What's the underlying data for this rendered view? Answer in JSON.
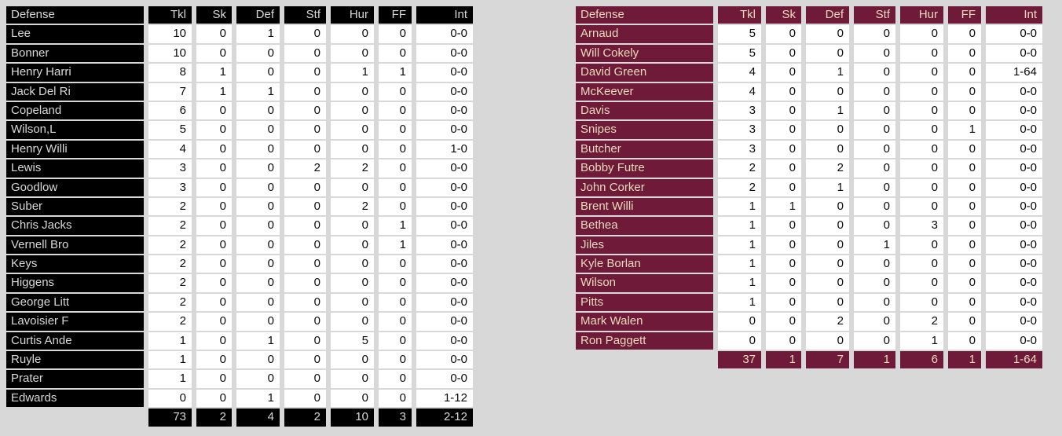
{
  "page": {
    "background": "#d8d8d8"
  },
  "columns": [
    "Defense",
    "Tkl",
    "Sk",
    "Def",
    "Stf",
    "Hur",
    "FF",
    "Int"
  ],
  "tables": {
    "left": {
      "team": "black-team",
      "accent_bg": "#000000",
      "accent_text": "#d8d8d8",
      "rows": [
        [
          "Lee",
          "10",
          "0",
          "1",
          "0",
          "0",
          "0",
          "0-0"
        ],
        [
          "Bonner",
          "10",
          "0",
          "0",
          "0",
          "0",
          "0",
          "0-0"
        ],
        [
          "Henry Harri",
          "8",
          "1",
          "0",
          "0",
          "1",
          "1",
          "0-0"
        ],
        [
          "Jack Del Ri",
          "7",
          "1",
          "1",
          "0",
          "0",
          "0",
          "0-0"
        ],
        [
          "Copeland",
          "6",
          "0",
          "0",
          "0",
          "0",
          "0",
          "0-0"
        ],
        [
          "Wilson,L",
          "5",
          "0",
          "0",
          "0",
          "0",
          "0",
          "0-0"
        ],
        [
          "Henry Willi",
          "4",
          "0",
          "0",
          "0",
          "0",
          "0",
          "1-0"
        ],
        [
          "Lewis",
          "3",
          "0",
          "0",
          "2",
          "2",
          "0",
          "0-0"
        ],
        [
          "Goodlow",
          "3",
          "0",
          "0",
          "0",
          "0",
          "0",
          "0-0"
        ],
        [
          "Suber",
          "2",
          "0",
          "0",
          "0",
          "2",
          "0",
          "0-0"
        ],
        [
          "Chris Jacks",
          "2",
          "0",
          "0",
          "0",
          "0",
          "1",
          "0-0"
        ],
        [
          "Vernell Bro",
          "2",
          "0",
          "0",
          "0",
          "0",
          "1",
          "0-0"
        ],
        [
          "Keys",
          "2",
          "0",
          "0",
          "0",
          "0",
          "0",
          "0-0"
        ],
        [
          "Higgens",
          "2",
          "0",
          "0",
          "0",
          "0",
          "0",
          "0-0"
        ],
        [
          "George Litt",
          "2",
          "0",
          "0",
          "0",
          "0",
          "0",
          "0-0"
        ],
        [
          "Lavoisier F",
          "2",
          "0",
          "0",
          "0",
          "0",
          "0",
          "0-0"
        ],
        [
          "Curtis Ande",
          "1",
          "0",
          "1",
          "0",
          "5",
          "0",
          "0-0"
        ],
        [
          "Ruyle",
          "1",
          "0",
          "0",
          "0",
          "0",
          "0",
          "0-0"
        ],
        [
          "Prater",
          "1",
          "0",
          "0",
          "0",
          "0",
          "0",
          "0-0"
        ],
        [
          "Edwards",
          "0",
          "0",
          "1",
          "0",
          "0",
          "0",
          "1-12"
        ]
      ],
      "totals": [
        "73",
        "2",
        "4",
        "2",
        "10",
        "3",
        "2-12"
      ]
    },
    "right": {
      "team": "maroon-team",
      "accent_bg": "#6e1a38",
      "accent_text": "#eaddbb",
      "rows": [
        [
          "Arnaud",
          "5",
          "0",
          "0",
          "0",
          "0",
          "0",
          "0-0"
        ],
        [
          "Will Cokely",
          "5",
          "0",
          "0",
          "0",
          "0",
          "0",
          "0-0"
        ],
        [
          "David Green",
          "4",
          "0",
          "1",
          "0",
          "0",
          "0",
          "1-64"
        ],
        [
          "McKeever",
          "4",
          "0",
          "0",
          "0",
          "0",
          "0",
          "0-0"
        ],
        [
          "Davis",
          "3",
          "0",
          "1",
          "0",
          "0",
          "0",
          "0-0"
        ],
        [
          "Snipes",
          "3",
          "0",
          "0",
          "0",
          "0",
          "1",
          "0-0"
        ],
        [
          "Butcher",
          "3",
          "0",
          "0",
          "0",
          "0",
          "0",
          "0-0"
        ],
        [
          "Bobby Futre",
          "2",
          "0",
          "2",
          "0",
          "0",
          "0",
          "0-0"
        ],
        [
          "John Corker",
          "2",
          "0",
          "1",
          "0",
          "0",
          "0",
          "0-0"
        ],
        [
          "Brent Willi",
          "1",
          "1",
          "0",
          "0",
          "0",
          "0",
          "0-0"
        ],
        [
          "Bethea",
          "1",
          "0",
          "0",
          "0",
          "3",
          "0",
          "0-0"
        ],
        [
          "Jiles",
          "1",
          "0",
          "0",
          "1",
          "0",
          "0",
          "0-0"
        ],
        [
          "Kyle Borlan",
          "1",
          "0",
          "0",
          "0",
          "0",
          "0",
          "0-0"
        ],
        [
          "Wilson",
          "1",
          "0",
          "0",
          "0",
          "0",
          "0",
          "0-0"
        ],
        [
          "Pitts",
          "1",
          "0",
          "0",
          "0",
          "0",
          "0",
          "0-0"
        ],
        [
          "Mark Walen",
          "0",
          "0",
          "2",
          "0",
          "2",
          "0",
          "0-0"
        ],
        [
          "Ron Paggett",
          "0",
          "0",
          "0",
          "0",
          "1",
          "0",
          "0-0"
        ]
      ],
      "totals": [
        "37",
        "1",
        "7",
        "1",
        "6",
        "1",
        "1-64"
      ]
    }
  }
}
